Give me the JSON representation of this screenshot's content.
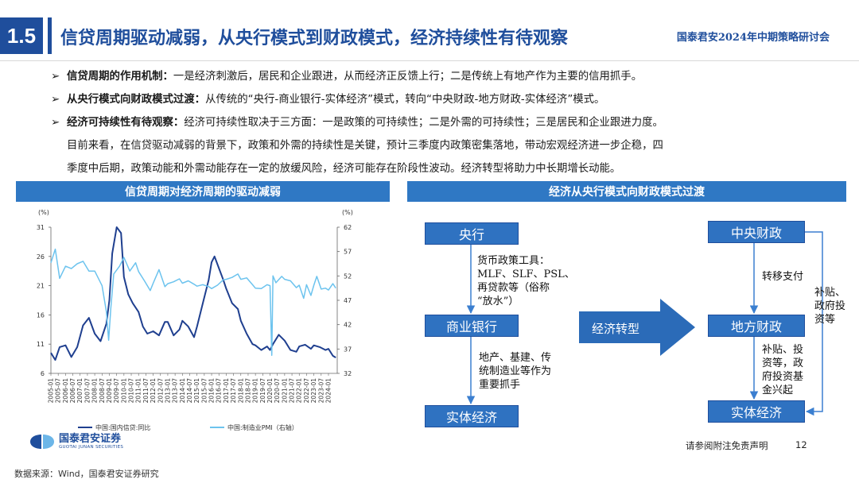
{
  "header": {
    "section_number": "1.5",
    "title": "信贷周期驱动减弱，从央行模式到财政模式，经济持续性有待观察",
    "conference": "国泰君安2024年中期策略研讨会"
  },
  "bullets": [
    {
      "bold": "信贷周期的作用机制：",
      "text": "一是经济刺激后，居民和企业跟进，从而经济正反馈上行；二是传统上有地产作为主要的信用抓手。"
    },
    {
      "bold": "从央行模式向财政模式过渡：",
      "text": "从传统的“央行-商业银行-实体经济”模式，转向“中央财政-地方财政-实体经济”模式。"
    },
    {
      "bold": "经济可持续性有待观察：",
      "text": "经济可持续性取决于三方面：一是政策的可持续性；二是外需的可持续性；三是居民和企业跟进力度。"
    }
  ],
  "bullet_continuation": [
    "目前来看，在信贷驱动减弱的背景下，政策和外需的持续性是关键，预计三季度内政策密集落地，带动宏观经济进一步企稳，四",
    "季度中后期，政策动能和外需动能存在一定的放缓风险，经济可能存在阶段性波动。经济转型将助力中长期增长动能。"
  ],
  "left_panel": {
    "title": "信贷周期对经济周期的驱动减弱"
  },
  "right_panel": {
    "title": "经济从央行模式向财政模式过渡"
  },
  "chart_data": {
    "type": "line",
    "left_unit": "(%)",
    "right_unit": "(%)",
    "left_ylim": [
      6,
      31
    ],
    "left_ticks": [
      "31",
      "26",
      "21",
      "16",
      "11",
      "6"
    ],
    "right_ylim": [
      32,
      62
    ],
    "right_ticks": [
      "62",
      "57",
      "52",
      "47",
      "42",
      "37",
      "32"
    ],
    "x_ticks": [
      "2005-01",
      "2005-07",
      "2006-01",
      "2006-07",
      "2007-01",
      "2007-07",
      "2008-01",
      "2008-07",
      "2009-01",
      "2009-07",
      "2010-01",
      "2010-07",
      "2011-01",
      "2011-07",
      "2012-01",
      "2012-07",
      "2013-01",
      "2013-07",
      "2014-01",
      "2014-07",
      "2015-01",
      "2015-07",
      "2016-01",
      "2016-07",
      "2017-01",
      "2017-07",
      "2018-01",
      "2018-07",
      "2019-01",
      "2019-07",
      "2020-01",
      "2020-07",
      "2021-01",
      "2021-07",
      "2022-01",
      "2022-07",
      "2023-01",
      "2023-07",
      "2024-01"
    ],
    "series": [
      {
        "name": "中国:国内信贷:同比",
        "axis": "left",
        "color": "#1f3f8f",
        "points": [
          [
            2005.0,
            9.5
          ],
          [
            2005.3,
            8.3
          ],
          [
            2005.6,
            10.5
          ],
          [
            2006.0,
            10.8
          ],
          [
            2006.4,
            8.8
          ],
          [
            2006.8,
            10.5
          ],
          [
            2007.2,
            14.2
          ],
          [
            2007.6,
            15.5
          ],
          [
            2008.0,
            12.8
          ],
          [
            2008.4,
            11.5
          ],
          [
            2008.8,
            14.5
          ],
          [
            2009.0,
            18.5
          ],
          [
            2009.2,
            26.5
          ],
          [
            2009.5,
            31.0
          ],
          [
            2009.8,
            30.0
          ],
          [
            2010.0,
            22.5
          ],
          [
            2010.3,
            19.5
          ],
          [
            2010.6,
            18.0
          ],
          [
            2011.0,
            16.5
          ],
          [
            2011.3,
            14.0
          ],
          [
            2011.6,
            12.8
          ],
          [
            2012.0,
            13.2
          ],
          [
            2012.4,
            12.5
          ],
          [
            2012.8,
            14.8
          ],
          [
            2013.0,
            14.8
          ],
          [
            2013.4,
            12.5
          ],
          [
            2013.8,
            13.5
          ],
          [
            2014.0,
            15.0
          ],
          [
            2014.4,
            14.0
          ],
          [
            2014.8,
            12.2
          ],
          [
            2015.0,
            14.0
          ],
          [
            2015.4,
            18.0
          ],
          [
            2015.8,
            22.0
          ],
          [
            2016.0,
            25.0
          ],
          [
            2016.2,
            26.0
          ],
          [
            2016.5,
            24.0
          ],
          [
            2016.8,
            22.0
          ],
          [
            2017.0,
            20.5
          ],
          [
            2017.4,
            18.0
          ],
          [
            2017.8,
            17.0
          ],
          [
            2018.0,
            15.0
          ],
          [
            2018.4,
            12.8
          ],
          [
            2018.8,
            11.0
          ],
          [
            2019.0,
            10.8
          ],
          [
            2019.4,
            10.0
          ],
          [
            2019.8,
            10.6
          ],
          [
            2020.0,
            10.0
          ],
          [
            2020.2,
            11.0
          ],
          [
            2020.6,
            12.6
          ],
          [
            2021.0,
            11.6
          ],
          [
            2021.4,
            10.0
          ],
          [
            2021.8,
            9.7
          ],
          [
            2022.0,
            10.6
          ],
          [
            2022.4,
            10.9
          ],
          [
            2022.8,
            10.2
          ],
          [
            2023.0,
            10.8
          ],
          [
            2023.4,
            10.5
          ],
          [
            2023.8,
            10.0
          ],
          [
            2024.0,
            10.2
          ],
          [
            2024.3,
            9.0
          ],
          [
            2024.5,
            8.7
          ]
        ]
      },
      {
        "name": "中国:制造业PMI（右轴）",
        "axis": "right",
        "color": "#6cc3ee",
        "points": [
          [
            2005.0,
            54.7
          ],
          [
            2005.3,
            57.5
          ],
          [
            2005.6,
            51.5
          ],
          [
            2006.0,
            54.0
          ],
          [
            2006.4,
            53.5
          ],
          [
            2006.8,
            54.5
          ],
          [
            2007.2,
            55.0
          ],
          [
            2007.6,
            53.0
          ],
          [
            2008.0,
            53.0
          ],
          [
            2008.5,
            50.0
          ],
          [
            2008.8,
            44.6
          ],
          [
            2008.95,
            38.8
          ],
          [
            2009.1,
            45.3
          ],
          [
            2009.3,
            52.4
          ],
          [
            2009.7,
            54.0
          ],
          [
            2010.0,
            55.8
          ],
          [
            2010.4,
            53.0
          ],
          [
            2010.8,
            54.7
          ],
          [
            2011.0,
            52.9
          ],
          [
            2011.4,
            51.0
          ],
          [
            2011.8,
            49.0
          ],
          [
            2012.0,
            50.5
          ],
          [
            2012.4,
            53.3
          ],
          [
            2012.8,
            49.8
          ],
          [
            2013.0,
            50.4
          ],
          [
            2013.4,
            50.8
          ],
          [
            2013.8,
            51.4
          ],
          [
            2014.0,
            50.5
          ],
          [
            2014.4,
            51.0
          ],
          [
            2014.8,
            50.3
          ],
          [
            2015.0,
            49.9
          ],
          [
            2015.4,
            50.2
          ],
          [
            2015.8,
            49.8
          ],
          [
            2016.0,
            49.4
          ],
          [
            2016.4,
            50.1
          ],
          [
            2016.8,
            51.2
          ],
          [
            2017.0,
            51.3
          ],
          [
            2017.4,
            51.7
          ],
          [
            2017.8,
            52.4
          ],
          [
            2018.0,
            51.3
          ],
          [
            2018.4,
            51.6
          ],
          [
            2018.8,
            50.2
          ],
          [
            2019.0,
            49.5
          ],
          [
            2019.4,
            49.4
          ],
          [
            2019.8,
            50.2
          ],
          [
            2020.0,
            50.0
          ],
          [
            2020.12,
            35.7
          ],
          [
            2020.2,
            52.0
          ],
          [
            2020.4,
            50.6
          ],
          [
            2020.8,
            51.9
          ],
          [
            2021.0,
            51.3
          ],
          [
            2021.4,
            51.0
          ],
          [
            2021.8,
            49.6
          ],
          [
            2022.0,
            50.1
          ],
          [
            2022.3,
            47.4
          ],
          [
            2022.5,
            50.2
          ],
          [
            2022.8,
            48.0
          ],
          [
            2023.0,
            50.1
          ],
          [
            2023.2,
            51.9
          ],
          [
            2023.5,
            49.3
          ],
          [
            2023.8,
            49.5
          ],
          [
            2024.0,
            49.1
          ],
          [
            2024.3,
            50.4
          ],
          [
            2024.5,
            49.5
          ]
        ]
      }
    ]
  },
  "diagram": {
    "box_central_bank": "央行",
    "box_commercial_bank": "商业银行",
    "box_real_economy_left": "实体经济",
    "box_central_finance": "中央财政",
    "box_local_finance": "地方财政",
    "box_real_economy_right": "实体经济",
    "big_arrow_label": "经济转型",
    "note_monetary": [
      "货币政策工具：",
      "MLF、SLF、PSL、",
      "再贷款等（俗称",
      "“放水”）"
    ],
    "note_property": [
      "地产、基建、传",
      "统制造业等作为",
      "重要抓手"
    ],
    "note_transfer": "转移支付",
    "note_subsidy_right": [
      "补贴、",
      "政府投",
      "资等"
    ],
    "note_subsidy_local": [
      "补贴、投",
      "资等，政",
      "府投资基",
      "金兴起"
    ]
  },
  "footer": {
    "logo_cn": "国泰君安证券",
    "logo_en": "GUOTAI JUNAN SECURITIES",
    "disclaimer": "请参阅附注免责声明",
    "page_number": "12",
    "source": "数据来源：Wind，国泰君安证券研究"
  },
  "colors": {
    "brand_blue": "#1f4e9c",
    "panel_blue": "#2f78c4",
    "box_blue": "#2f72c1",
    "arrow_blue": "#2b6bb8"
  }
}
